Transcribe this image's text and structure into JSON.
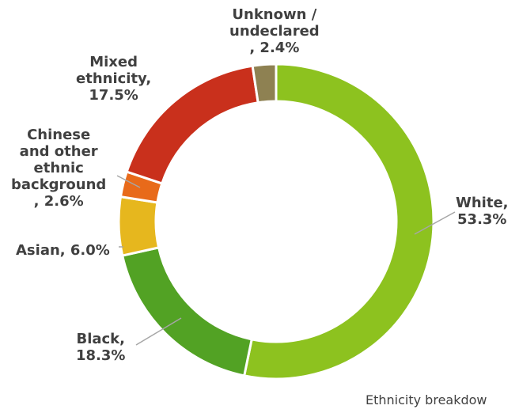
{
  "chart_data": {
    "type": "pie",
    "donut": true,
    "caption": "Ethnicity breakdow",
    "slices": [
      {
        "label_lines": [
          "White,",
          "53.3%"
        ],
        "name": "White",
        "value": 53.3,
        "color": "#8DC21F"
      },
      {
        "label_lines": [
          "Black,",
          "18.3%"
        ],
        "name": "Black",
        "value": 18.3,
        "color": "#52A224"
      },
      {
        "label_lines": [
          "Asian, 6.0%"
        ],
        "name": "Asian",
        "value": 6.0,
        "color": "#E6B71E"
      },
      {
        "label_lines": [
          "Chinese",
          "and other",
          "ethnic",
          "background",
          ", 2.6%"
        ],
        "name": "Chinese and other ethnic background",
        "value": 2.6,
        "color": "#E86A1A"
      },
      {
        "label_lines": [
          "Mixed",
          "ethnicity,",
          "17.5%"
        ],
        "name": "Mixed ethnicity",
        "value": 17.5,
        "color": "#C9301C"
      },
      {
        "label_lines": [
          "Unknown /",
          "undeclared",
          ", 2.4%"
        ],
        "name": "Unknown / undeclared",
        "value": 2.4,
        "color": "#8E8152"
      }
    ]
  }
}
